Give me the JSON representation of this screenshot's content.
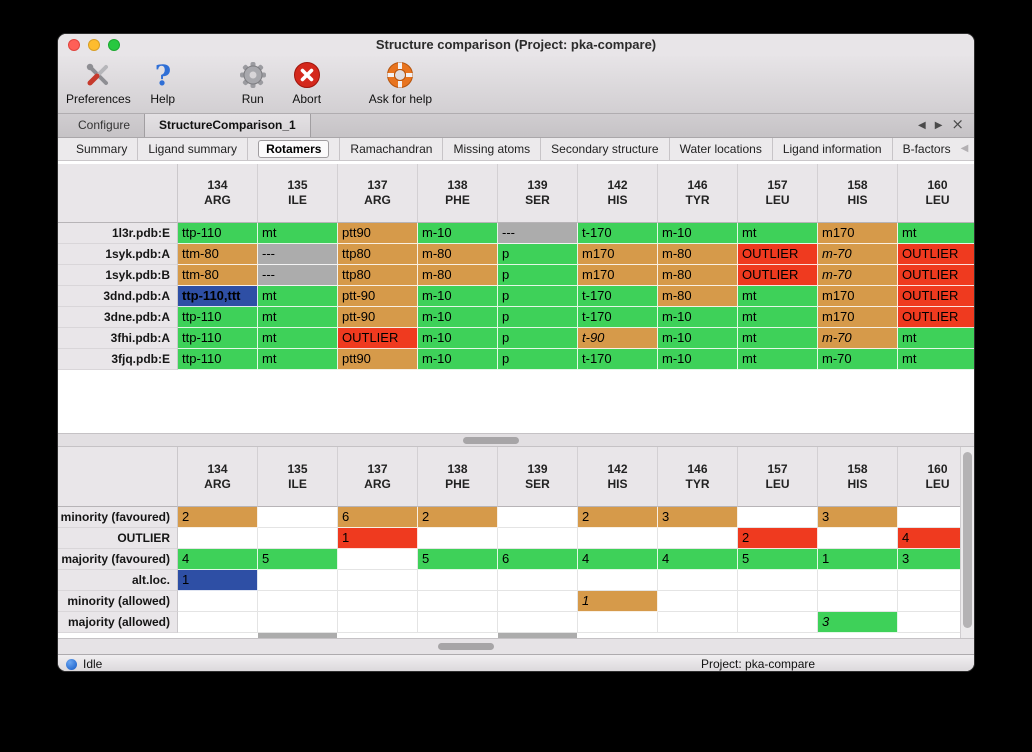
{
  "window": {
    "title": "Structure comparison (Project: pka-compare)"
  },
  "toolbar": {
    "items": [
      {
        "label": "Preferences",
        "icon": "tools-icon"
      },
      {
        "label": "Help",
        "icon": "question-icon"
      },
      {
        "label": "Run",
        "icon": "gear-icon"
      },
      {
        "label": "Abort",
        "icon": "abort-icon"
      },
      {
        "label": "Ask for help",
        "icon": "lifebuoy-icon"
      }
    ]
  },
  "tabs": {
    "items": [
      {
        "label": "Configure",
        "active": false
      },
      {
        "label": "StructureComparison_1",
        "active": true
      }
    ],
    "nav": {
      "prev": "◀",
      "next": "▶",
      "close": "×"
    }
  },
  "subtabs": {
    "items": [
      {
        "label": "Summary",
        "active": false
      },
      {
        "label": "Ligand summary",
        "active": false
      },
      {
        "label": "Rotamers",
        "active": true
      },
      {
        "label": "Ramachandran",
        "active": false
      },
      {
        "label": "Missing atoms",
        "active": false
      },
      {
        "label": "Secondary structure",
        "active": false
      },
      {
        "label": "Water locations",
        "active": false
      },
      {
        "label": "Ligand information",
        "active": false
      },
      {
        "label": "B-factors",
        "active": false
      }
    ],
    "nav": {
      "prev": "◀",
      "next": "▶"
    }
  },
  "columns": [
    {
      "num": "134",
      "res": "ARG"
    },
    {
      "num": "135",
      "res": "ILE"
    },
    {
      "num": "137",
      "res": "ARG"
    },
    {
      "num": "138",
      "res": "PHE"
    },
    {
      "num": "139",
      "res": "SER"
    },
    {
      "num": "142",
      "res": "HIS"
    },
    {
      "num": "146",
      "res": "TYR"
    },
    {
      "num": "157",
      "res": "LEU"
    },
    {
      "num": "158",
      "res": "HIS"
    },
    {
      "num": "160",
      "res": "LEU"
    }
  ],
  "colors": {
    "green": "#3ed159",
    "orange": "#d69a4a",
    "red": "#ef3a1f",
    "gray": "#acacac",
    "blue": "#2e4fa5"
  },
  "top_table": {
    "rows": [
      {
        "label": "1l3r.pdb:E",
        "cells": [
          {
            "t": "ttp-110",
            "c": "green"
          },
          {
            "t": "mt",
            "c": "green"
          },
          {
            "t": "ptt90",
            "c": "orange"
          },
          {
            "t": "m-10",
            "c": "green"
          },
          {
            "t": "---",
            "c": "gray"
          },
          {
            "t": "t-170",
            "c": "green"
          },
          {
            "t": "m-10",
            "c": "green"
          },
          {
            "t": "mt",
            "c": "green"
          },
          {
            "t": "m170",
            "c": "orange"
          },
          {
            "t": "mt",
            "c": "green"
          }
        ]
      },
      {
        "label": "1syk.pdb:A",
        "cells": [
          {
            "t": "ttm-80",
            "c": "orange"
          },
          {
            "t": "---",
            "c": "gray"
          },
          {
            "t": "ttp80",
            "c": "orange"
          },
          {
            "t": "m-80",
            "c": "orange"
          },
          {
            "t": "p",
            "c": "green"
          },
          {
            "t": "m170",
            "c": "orange"
          },
          {
            "t": "m-80",
            "c": "orange"
          },
          {
            "t": "OUTLIER",
            "c": "red"
          },
          {
            "t": "m-70",
            "c": "orange",
            "i": true
          },
          {
            "t": "OUTLIER",
            "c": "red"
          }
        ]
      },
      {
        "label": "1syk.pdb:B",
        "cells": [
          {
            "t": "ttm-80",
            "c": "orange"
          },
          {
            "t": "---",
            "c": "gray"
          },
          {
            "t": "ttp80",
            "c": "orange"
          },
          {
            "t": "m-80",
            "c": "orange"
          },
          {
            "t": "p",
            "c": "green"
          },
          {
            "t": "m170",
            "c": "orange"
          },
          {
            "t": "m-80",
            "c": "orange"
          },
          {
            "t": "OUTLIER",
            "c": "red"
          },
          {
            "t": "m-70",
            "c": "orange",
            "i": true
          },
          {
            "t": "OUTLIER",
            "c": "red"
          }
        ]
      },
      {
        "label": "3dnd.pdb:A",
        "cells": [
          {
            "t": "ttp-110,ttt",
            "c": "blue",
            "b": true
          },
          {
            "t": "mt",
            "c": "green"
          },
          {
            "t": "ptt-90",
            "c": "orange"
          },
          {
            "t": "m-10",
            "c": "green"
          },
          {
            "t": "p",
            "c": "green"
          },
          {
            "t": "t-170",
            "c": "green"
          },
          {
            "t": "m-80",
            "c": "orange"
          },
          {
            "t": "mt",
            "c": "green"
          },
          {
            "t": "m170",
            "c": "orange"
          },
          {
            "t": "OUTLIER",
            "c": "red"
          }
        ]
      },
      {
        "label": "3dne.pdb:A",
        "cells": [
          {
            "t": "ttp-110",
            "c": "green"
          },
          {
            "t": "mt",
            "c": "green"
          },
          {
            "t": "ptt-90",
            "c": "orange"
          },
          {
            "t": "m-10",
            "c": "green"
          },
          {
            "t": "p",
            "c": "green"
          },
          {
            "t": "t-170",
            "c": "green"
          },
          {
            "t": "m-10",
            "c": "green"
          },
          {
            "t": "mt",
            "c": "green"
          },
          {
            "t": "m170",
            "c": "orange"
          },
          {
            "t": "OUTLIER",
            "c": "red"
          }
        ]
      },
      {
        "label": "3fhi.pdb:A",
        "cells": [
          {
            "t": "ttp-110",
            "c": "green"
          },
          {
            "t": "mt",
            "c": "green"
          },
          {
            "t": "OUTLIER",
            "c": "red"
          },
          {
            "t": "m-10",
            "c": "green"
          },
          {
            "t": "p",
            "c": "green"
          },
          {
            "t": "t-90",
            "c": "orange",
            "i": true
          },
          {
            "t": "m-10",
            "c": "green"
          },
          {
            "t": "mt",
            "c": "green"
          },
          {
            "t": "m-70",
            "c": "orange",
            "i": true
          },
          {
            "t": "mt",
            "c": "green"
          }
        ]
      },
      {
        "label": "3fjq.pdb:E",
        "cells": [
          {
            "t": "ttp-110",
            "c": "green"
          },
          {
            "t": "mt",
            "c": "green"
          },
          {
            "t": "ptt90",
            "c": "orange"
          },
          {
            "t": "m-10",
            "c": "green"
          },
          {
            "t": "p",
            "c": "green"
          },
          {
            "t": "t-170",
            "c": "green"
          },
          {
            "t": "m-10",
            "c": "green"
          },
          {
            "t": "mt",
            "c": "green"
          },
          {
            "t": "m-70",
            "c": "green"
          },
          {
            "t": "mt",
            "c": "green"
          }
        ]
      }
    ]
  },
  "bottom_table": {
    "rows": [
      {
        "label": "minority (favoured)",
        "cells": [
          {
            "t": "2",
            "c": "orange"
          },
          {},
          {
            "t": "6",
            "c": "orange"
          },
          {
            "t": "2",
            "c": "orange"
          },
          {},
          {
            "t": "2",
            "c": "orange"
          },
          {
            "t": "3",
            "c": "orange"
          },
          {},
          {
            "t": "3",
            "c": "orange"
          },
          {}
        ]
      },
      {
        "label": "OUTLIER",
        "cells": [
          {},
          {},
          {
            "t": "1",
            "c": "red"
          },
          {},
          {},
          {},
          {},
          {
            "t": "2",
            "c": "red"
          },
          {},
          {
            "t": "4",
            "c": "red"
          }
        ]
      },
      {
        "label": "majority (favoured)",
        "cells": [
          {
            "t": "4",
            "c": "green"
          },
          {
            "t": "5",
            "c": "green"
          },
          {},
          {
            "t": "5",
            "c": "green"
          },
          {
            "t": "6",
            "c": "green"
          },
          {
            "t": "4",
            "c": "green"
          },
          {
            "t": "4",
            "c": "green"
          },
          {
            "t": "5",
            "c": "green"
          },
          {
            "t": "1",
            "c": "green"
          },
          {
            "t": "3",
            "c": "green"
          }
        ]
      },
      {
        "label": "alt.loc.",
        "cells": [
          {
            "t": "1",
            "c": "blue"
          },
          {},
          {},
          {},
          {},
          {},
          {},
          {},
          {},
          {}
        ]
      },
      {
        "label": "minority (allowed)",
        "cells": [
          {},
          {},
          {},
          {},
          {},
          {
            "t": "1",
            "c": "orange",
            "i": true
          },
          {},
          {},
          {},
          {}
        ]
      },
      {
        "label": "majority (allowed)",
        "cells": [
          {},
          {},
          {},
          {},
          {},
          {},
          {},
          {},
          {
            "t": "3",
            "c": "green",
            "i": true
          },
          {}
        ]
      }
    ],
    "partial_gray_columns": [
      1,
      4
    ]
  },
  "statusbar": {
    "status": "Idle",
    "project": "Project: pka-compare"
  }
}
